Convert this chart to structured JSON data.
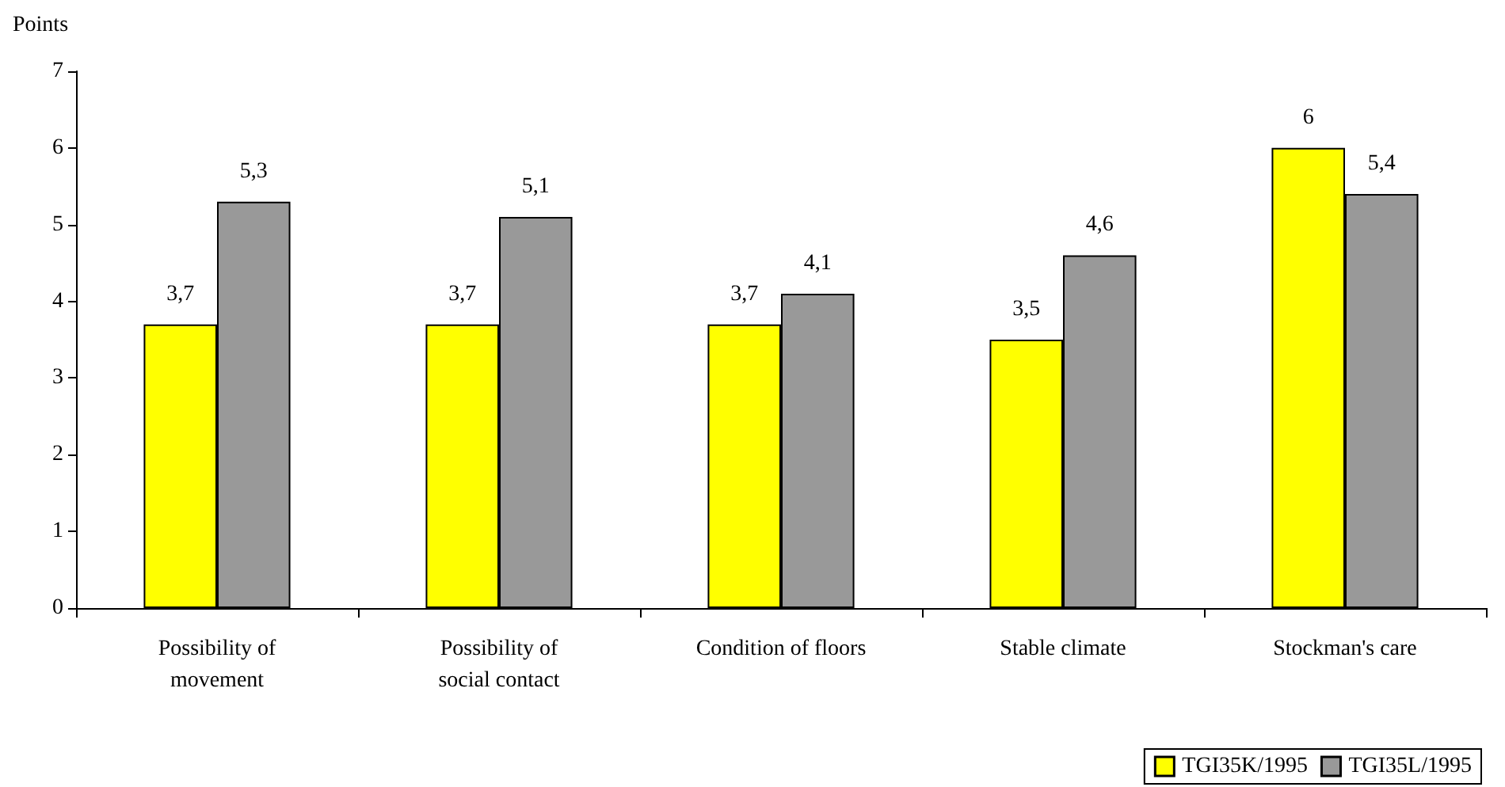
{
  "chart_data": {
    "type": "bar",
    "ylabel": "Points",
    "categories": [
      "Possibility of\nmovement",
      "Possibility of\nsocial contact",
      "Condition of floors",
      "Stable climate",
      "Stockman's care"
    ],
    "series": [
      {
        "name": "TGI35K/1995",
        "color": "#ffff00",
        "values": [
          3.7,
          3.7,
          3.7,
          3.5,
          6
        ],
        "value_labels": [
          "3,7",
          "3,7",
          "3,7",
          "3,5",
          "6"
        ]
      },
      {
        "name": "TGI35L/1995",
        "color": "#999999",
        "values": [
          5.3,
          5.1,
          4.1,
          4.6,
          5.4
        ],
        "value_labels": [
          "5,3",
          "5,1",
          "4,1",
          "4,6",
          "5,4"
        ]
      }
    ],
    "ylim": [
      0,
      7
    ],
    "yticks": [
      0,
      1,
      2,
      3,
      4,
      5,
      6,
      7
    ],
    "grid": false,
    "legend": "bottom right"
  }
}
